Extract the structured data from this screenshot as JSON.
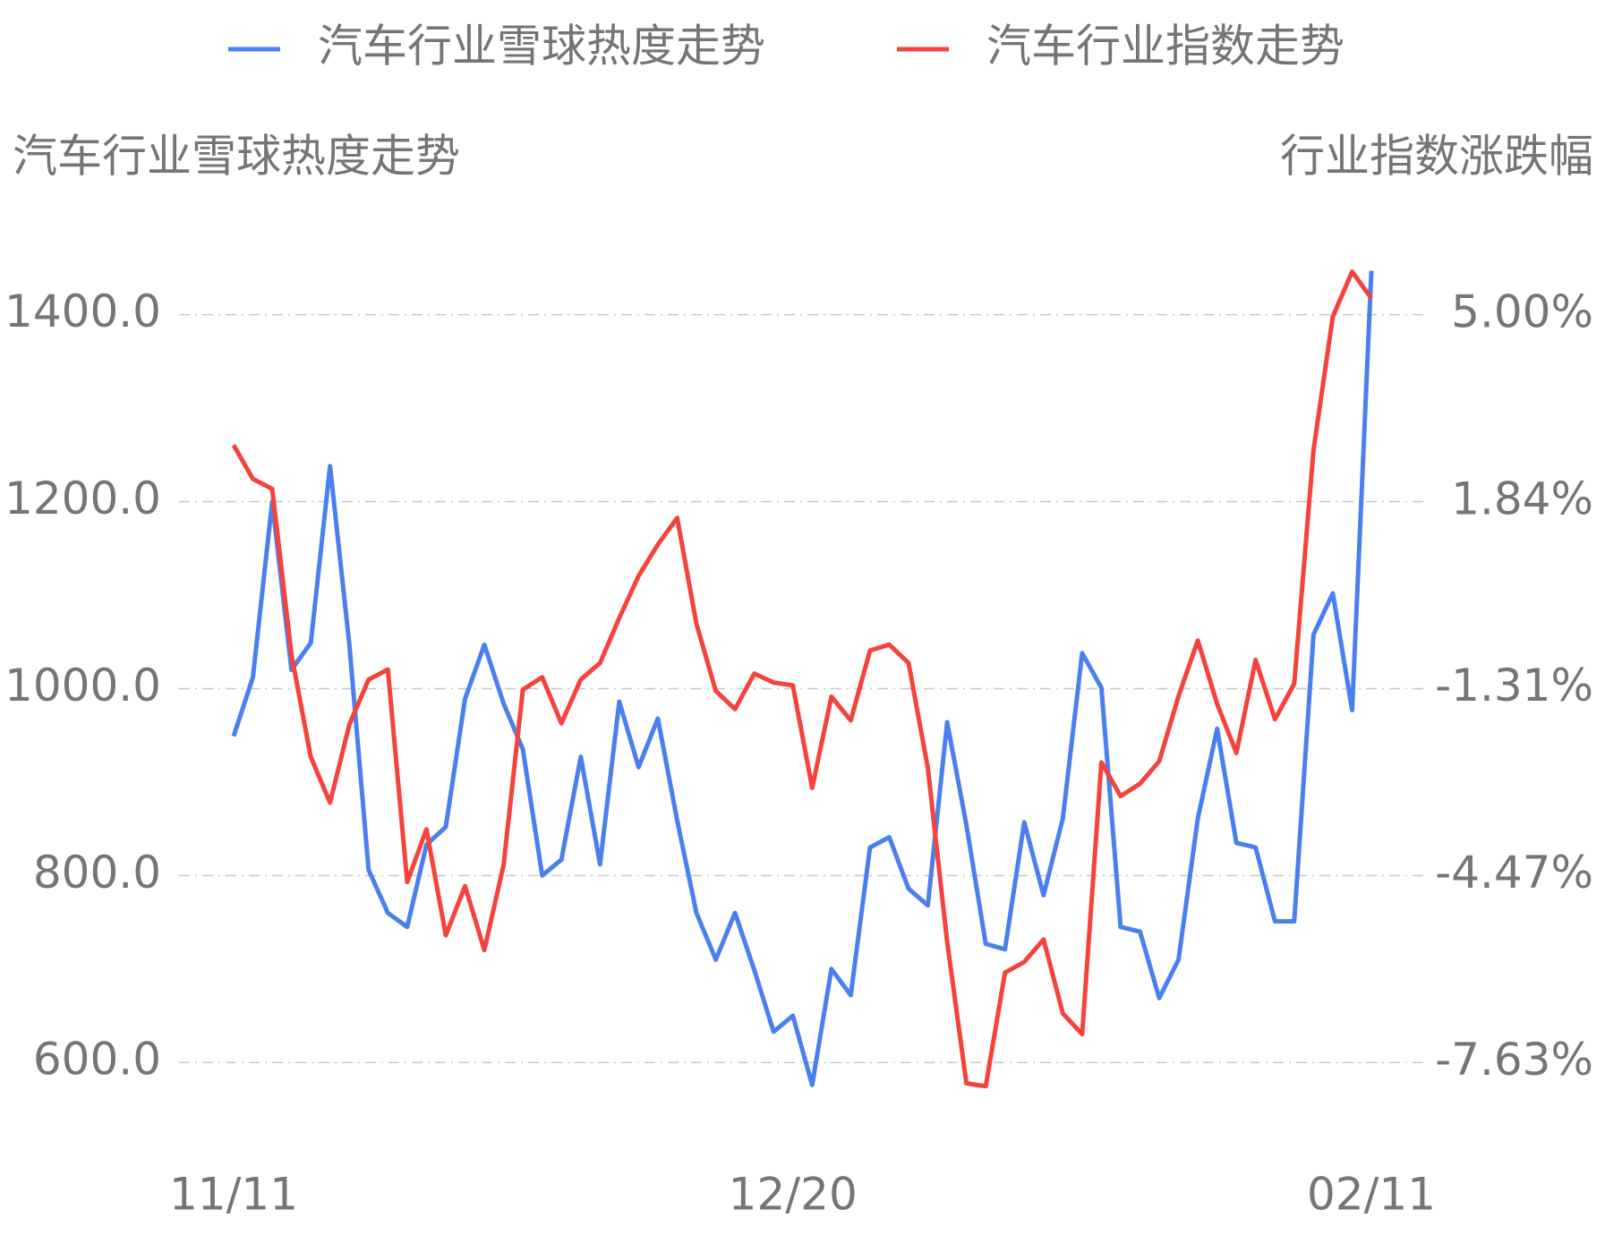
{
  "chart_data": {
    "type": "line",
    "legend_position": "top",
    "y_axis_label": "汽车行业雪球热度走势",
    "y2_axis_label": "行业指数涨跌幅",
    "categories": [
      "11/11",
      null,
      null,
      null,
      null,
      null,
      null,
      null,
      null,
      null,
      null,
      null,
      null,
      null,
      null,
      null,
      null,
      null,
      null,
      null,
      null,
      null,
      null,
      null,
      null,
      null,
      null,
      null,
      null,
      "12/20",
      null,
      null,
      null,
      null,
      null,
      null,
      null,
      null,
      null,
      null,
      null,
      null,
      null,
      null,
      null,
      null,
      null,
      null,
      null,
      null,
      null,
      null,
      null,
      null,
      null,
      null,
      null,
      null,
      null,
      "02/11"
    ],
    "series": [
      {
        "name": "汽车行业雪球热度走势",
        "color": "#4a7ff0",
        "values": [
          949,
          1012,
          1200,
          1020,
          1049,
          1238,
          1047,
          806,
          760,
          745,
          833,
          852,
          989,
          1047,
          984,
          935,
          800,
          817,
          927,
          812,
          986,
          916,
          968,
          859,
          760,
          710,
          760,
          699,
          633,
          650,
          576,
          700,
          672,
          830,
          841,
          786,
          768,
          964,
          854,
          727,
          721,
          857,
          779,
          861,
          1038,
          1001,
          745,
          740,
          669,
          710,
          861,
          957,
          835,
          830,
          751,
          751,
          1058,
          1102,
          977,
          1447
        ]
      },
      {
        "name": "汽车行业指数走势",
        "color": "#f5423c",
        "axis": "y2",
        "values": [
          2.8,
          2.23,
          2.06,
          -0.74,
          -2.47,
          -3.24,
          -1.92,
          -1.16,
          -0.99,
          -4.58,
          -3.69,
          -5.48,
          -4.65,
          -5.73,
          -4.29,
          -1.33,
          -1.12,
          -1.9,
          -1.16,
          -0.88,
          -0.12,
          0.59,
          1.12,
          1.57,
          -0.22,
          -1.35,
          -1.66,
          -1.06,
          -1.21,
          -1.26,
          -2.99,
          -1.45,
          -1.85,
          -0.67,
          -0.57,
          -0.88,
          -2.65,
          -5.59,
          -7.98,
          -8.03,
          -6.11,
          -5.93,
          -5.55,
          -6.8,
          -7.15,
          -2.56,
          -3.13,
          -2.92,
          -2.54,
          -1.44,
          -0.5,
          -1.57,
          -2.4,
          -0.83,
          -1.83,
          -1.23,
          2.72,
          4.97,
          5.73,
          5.28
        ]
      }
    ],
    "ylim": [
      560,
      1460
    ],
    "yticks": [
      {
        "value": 1400,
        "label": "1400.0"
      },
      {
        "value": 1200,
        "label": "1200.0"
      },
      {
        "value": 1000,
        "label": "1000.0"
      },
      {
        "value": 800,
        "label": "800.0"
      },
      {
        "value": 600,
        "label": "600.0"
      }
    ],
    "y2lim": [
      -8.26,
      5.95
    ],
    "y2ticks": [
      {
        "value": 5.0,
        "label": "5.00%"
      },
      {
        "value": 1.84,
        "label": "1.84%"
      },
      {
        "value": -1.31,
        "label": "-1.31%"
      },
      {
        "value": -4.47,
        "label": "-4.47%"
      },
      {
        "value": -7.63,
        "label": "-7.63%"
      }
    ],
    "grid": true
  }
}
